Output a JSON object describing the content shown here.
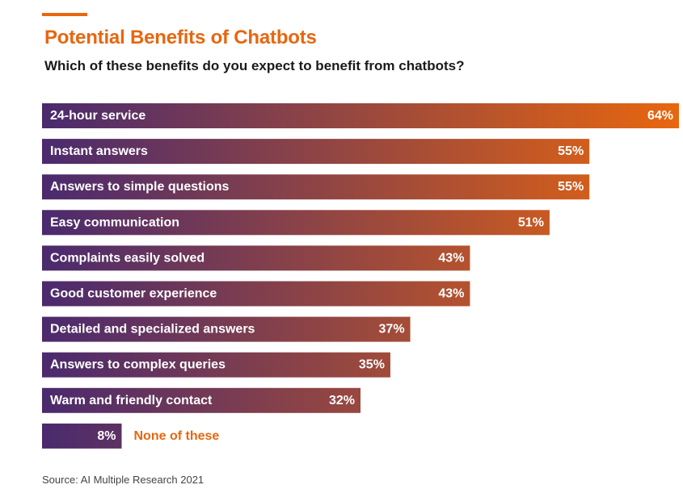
{
  "header": {
    "title": "Potential Benefits of Chatbots",
    "subtitle": "Which of these benefits do you expect to benefit from chatbots?"
  },
  "footer": {
    "source": "Source: AI Multiple Research 2021"
  },
  "colors": {
    "accent": "#e8660f",
    "bar_start": "#4a2a6e",
    "bar_end": "#e8660f"
  },
  "chart_data": {
    "type": "bar",
    "orientation": "horizontal",
    "title": "Potential Benefits of Chatbots",
    "subtitle": "Which of these benefits do you expect to benefit from chatbots?",
    "unit": "%",
    "xlim": [
      0,
      64
    ],
    "grid": false,
    "categories": [
      "24-hour service",
      "Instant answers",
      "Answers to simple questions",
      "Easy communication",
      "Complaints easily solved",
      "Good customer experience",
      "Detailed and specialized answers",
      "Answers to complex queries",
      "Warm and friendly contact",
      "None of these"
    ],
    "values": [
      64,
      55,
      55,
      51,
      43,
      43,
      37,
      35,
      32,
      8
    ],
    "value_labels": [
      "64%",
      "55%",
      "55%",
      "51%",
      "43%",
      "43%",
      "37%",
      "35%",
      "32%",
      "8%"
    ]
  }
}
